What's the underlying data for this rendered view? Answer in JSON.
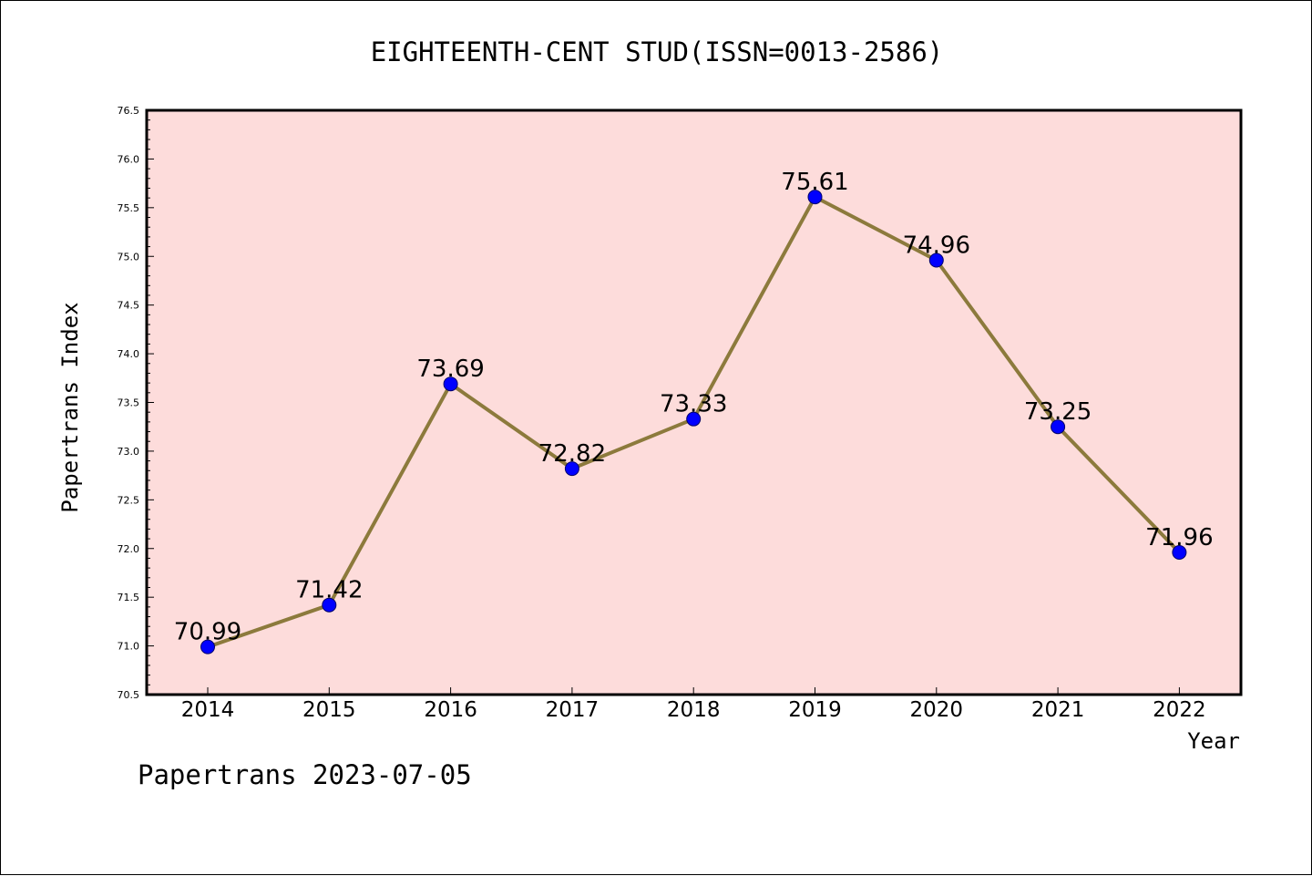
{
  "chart_data": {
    "type": "line",
    "title": "EIGHTEENTH-CENT STUD(ISSN=0013-2586)",
    "xlabel": "Year",
    "ylabel": "Papertrans Index",
    "categories": [
      "2014",
      "2015",
      "2016",
      "2017",
      "2018",
      "2019",
      "2020",
      "2021",
      "2022"
    ],
    "series": [
      {
        "values": [
          70.99,
          71.42,
          73.69,
          72.82,
          73.33,
          75.61,
          74.96,
          73.25,
          71.96
        ],
        "data_labels": [
          "70.99",
          "71.42",
          "73.69",
          "72.82",
          "73.33",
          "75.61",
          "74.96",
          "73.25",
          "71.96"
        ]
      }
    ],
    "ylim": [
      70.5,
      76.5
    ],
    "yticks": [
      "70.5",
      "71.0",
      "71.5",
      "72.0",
      "72.5",
      "73.0",
      "73.5",
      "74.0",
      "74.5",
      "75.0",
      "75.5",
      "76.0",
      "76.5"
    ],
    "grid": false,
    "legend": "none",
    "colors": {
      "plot_background": "#fddcdb",
      "line": "#8c7a3c",
      "marker": "#0000ff"
    }
  },
  "footer": {
    "note": "Papertrans 2023-07-05"
  }
}
